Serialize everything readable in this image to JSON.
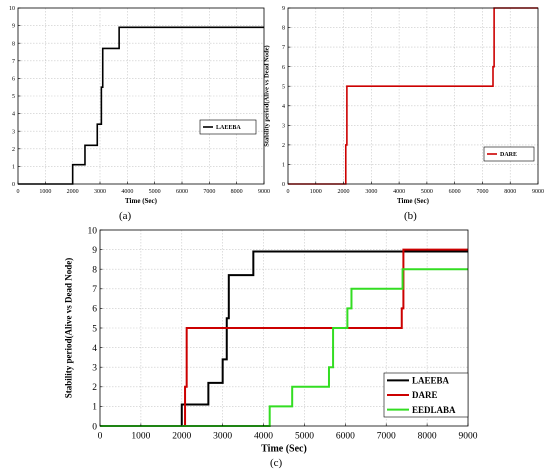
{
  "captions": {
    "a": "(a)",
    "b": "(b)",
    "c": "(c)"
  },
  "chart_data": [
    {
      "panel": "a",
      "type": "line",
      "xlabel": "Time (Sec)",
      "ylabel": "Stability period(Alive vs Dead Node)",
      "xlim": [
        0,
        9000
      ],
      "ylim": [
        0,
        10
      ],
      "xticks": [
        0,
        1000,
        2000,
        3000,
        4000,
        5000,
        6000,
        7000,
        8000,
        9000
      ],
      "yticks": [
        0,
        1,
        2,
        3,
        4,
        5,
        6,
        7,
        8,
        9,
        10
      ],
      "grid": true,
      "legend_position": "middle-right",
      "series": [
        {
          "name": "LAEEBA",
          "color": "#000000",
          "step": true,
          "x": [
            0,
            2000,
            2000,
            2450,
            2450,
            2900,
            2900,
            3050,
            3050,
            3100,
            3100,
            3150,
            3150,
            3700,
            3700,
            9000
          ],
          "y": [
            0,
            0,
            1.1,
            1.1,
            2.2,
            2.2,
            3.4,
            3.4,
            5.5,
            5.5,
            7.7,
            7.7,
            7.7,
            7.7,
            8.9,
            8.9
          ]
        }
      ]
    },
    {
      "panel": "b",
      "type": "line",
      "xlabel": "Time (Sec)",
      "ylabel": "Stability period(Alive vs Dead Node)",
      "xlim": [
        0,
        9000
      ],
      "ylim": [
        0,
        9
      ],
      "xticks": [
        0,
        1000,
        2000,
        3000,
        4000,
        5000,
        6000,
        7000,
        8000,
        9000
      ],
      "yticks": [
        0,
        1,
        2,
        3,
        4,
        5,
        6,
        7,
        8,
        9
      ],
      "grid": true,
      "legend_position": "middle-right",
      "series": [
        {
          "name": "DARE",
          "color": "#cc0000",
          "step": true,
          "x": [
            0,
            2080,
            2080,
            2120,
            2120,
            7380,
            7380,
            7420,
            7420,
            9000
          ],
          "y": [
            0,
            0,
            2,
            2,
            5,
            5,
            6,
            6,
            9,
            9
          ]
        }
      ]
    },
    {
      "panel": "c",
      "type": "line",
      "xlabel": "Time (Sec)",
      "ylabel": "Stability period(Alive vs Dead Node)",
      "xlim": [
        0,
        9000
      ],
      "ylim": [
        0,
        10
      ],
      "xticks": [
        0,
        1000,
        2000,
        3000,
        4000,
        5000,
        6000,
        7000,
        8000,
        9000
      ],
      "yticks": [
        0,
        1,
        2,
        3,
        4,
        5,
        6,
        7,
        8,
        9,
        10
      ],
      "grid": true,
      "legend_position": "bottom-right",
      "series": [
        {
          "name": "LAEEBA",
          "color": "#000000",
          "step": true,
          "x": [
            0,
            2000,
            2000,
            2650,
            2650,
            3000,
            3000,
            3100,
            3100,
            3150,
            3150,
            3250,
            3250,
            3750,
            3750,
            9000
          ],
          "y": [
            0,
            0,
            1.1,
            1.1,
            2.2,
            2.2,
            3.4,
            3.4,
            5.5,
            5.5,
            7.7,
            7.7,
            7.7,
            7.7,
            8.9,
            8.9
          ]
        },
        {
          "name": "DARE",
          "color": "#cc0000",
          "step": true,
          "x": [
            0,
            2080,
            2080,
            2120,
            2120,
            7380,
            7380,
            7420,
            7420,
            9000
          ],
          "y": [
            0,
            0,
            2,
            2,
            5,
            5,
            6,
            6,
            9,
            9
          ]
        },
        {
          "name": "EEDLABA",
          "color": "#33dd22",
          "step": true,
          "x": [
            0,
            4150,
            4150,
            4700,
            4700,
            5600,
            5600,
            5700,
            5700,
            6050,
            6050,
            6150,
            6150,
            7400,
            7400,
            9000
          ],
          "y": [
            0,
            0,
            1,
            1,
            2,
            2,
            3,
            3,
            5,
            5,
            6,
            6,
            7,
            7,
            8,
            8
          ]
        }
      ]
    }
  ]
}
